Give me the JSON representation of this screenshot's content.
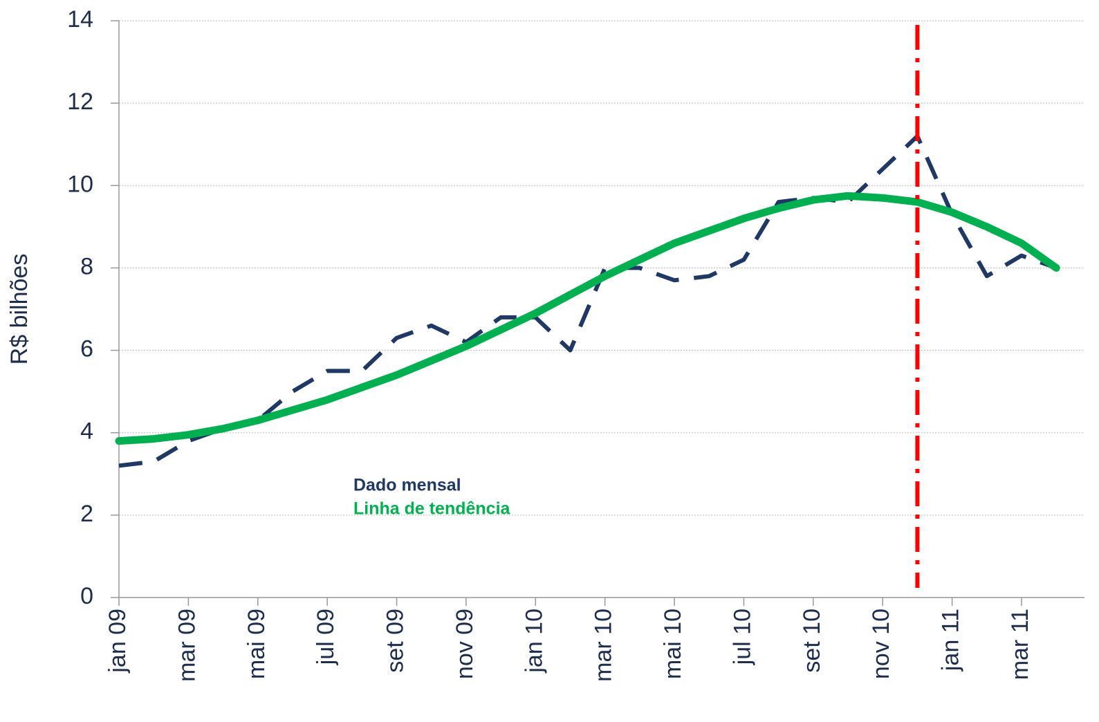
{
  "chart_data": {
    "type": "line",
    "y_label": "R$ bilhões",
    "categories": [
      "jan 09",
      null,
      "mar 09",
      null,
      "mai 09",
      null,
      "jul 09",
      null,
      "set 09",
      null,
      "nov 09",
      null,
      "jan 10",
      null,
      "mar 10",
      null,
      "mai 10",
      null,
      "jul 10",
      null,
      "set 10",
      null,
      "nov 10",
      null,
      "jan 11",
      null,
      "mar 11",
      null
    ],
    "series": [
      {
        "name": "Dado mensal",
        "color": "#1f3864",
        "dashed": true,
        "values": [
          3.2,
          3.3,
          3.8,
          4.1,
          4.3,
          5.0,
          5.5,
          5.5,
          6.3,
          6.6,
          6.2,
          6.8,
          6.8,
          6.0,
          8.0,
          8.0,
          7.7,
          7.8,
          8.2,
          9.6,
          9.7,
          9.6,
          10.4,
          11.2,
          9.3,
          7.8,
          8.3,
          8.0
        ]
      },
      {
        "name": "Linha de tendência",
        "color": "#00b050",
        "dashed": false,
        "values": [
          3.8,
          3.85,
          3.95,
          4.1,
          4.3,
          4.55,
          4.8,
          5.1,
          5.4,
          5.75,
          6.1,
          6.5,
          6.9,
          7.35,
          7.8,
          8.2,
          8.6,
          8.9,
          9.2,
          9.45,
          9.65,
          9.75,
          9.7,
          9.6,
          9.35,
          9.0,
          8.6,
          8.0
        ]
      }
    ],
    "vline": {
      "index": 23,
      "color": "#ff0000"
    },
    "ylim": [
      0,
      14
    ],
    "yticks": [
      0,
      2,
      4,
      6,
      8,
      10,
      12,
      14
    ],
    "grid": true
  }
}
